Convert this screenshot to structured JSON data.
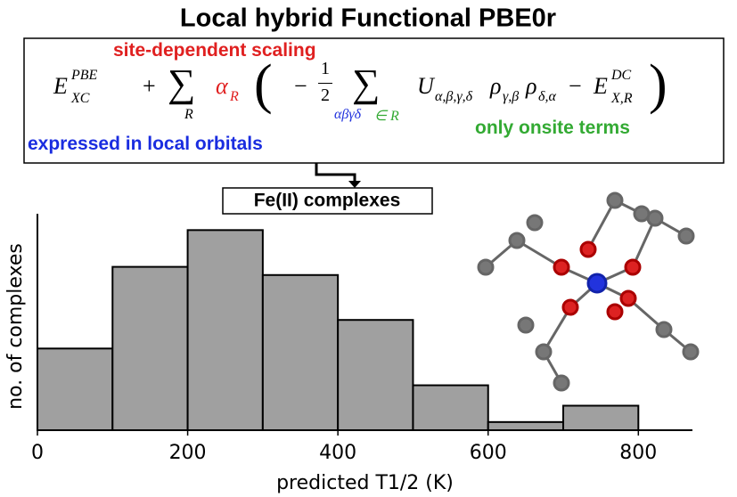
{
  "chart_data": {
    "type": "histogram",
    "title": "Local hybrid Functional PBE0r",
    "annotations": {
      "scaling": "site-dependent scaling",
      "orbitals": "expressed in local orbitals",
      "onsite": "only onsite terms",
      "system": "Fe(II) complexes"
    },
    "formula": [
      "E",
      "PBE",
      "XC",
      "+",
      "∑",
      "R",
      "α",
      "R",
      "(",
      "−",
      "1",
      "2",
      "∑",
      "αβγδ",
      "∈ R",
      "U",
      "α,β,γ,δ",
      "ρ",
      "γ,β",
      "ρ",
      "δ,α",
      "−",
      "E",
      "DC",
      "X,R",
      ")"
    ],
    "xlabel": "predicted T1/2 (K)",
    "ylabel": "no. of complexes",
    "bins": [
      0,
      100,
      200,
      300,
      400,
      500,
      600,
      700,
      800
    ],
    "values": [
      20,
      40,
      49,
      38,
      27,
      11,
      2,
      6
    ],
    "color": "#a0a0a0",
    "xlim": [
      0,
      872
    ],
    "xticks": [
      0,
      200,
      400,
      600,
      800
    ],
    "ylim": [
      0,
      53
    ]
  }
}
